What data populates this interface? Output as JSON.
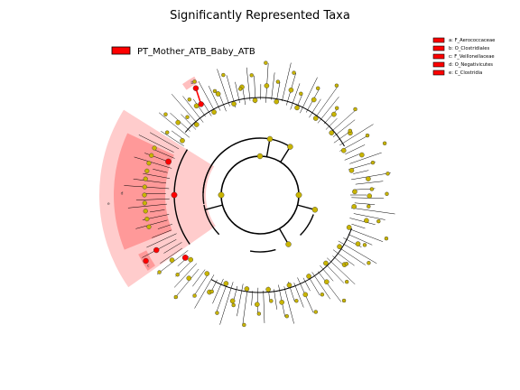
{
  "chart_data": {
    "type": "cladogram",
    "title": "Significantly Represented Taxa",
    "legend": {
      "class_label": "PT_Mother_ATB_Baby_ATB",
      "class_color": "#ff0000",
      "placement": "top-left",
      "taxa_placement": "top-right"
    },
    "taxa_legend": [
      {
        "key": "a",
        "text": "a: F_Aerococcaceae"
      },
      {
        "key": "b",
        "text": "b: O_Clostridiales"
      },
      {
        "key": "c",
        "text": "c: F_Veillonellaceae"
      },
      {
        "key": "d",
        "text": "d: O_Negativicutes"
      },
      {
        "key": "e",
        "text": "e: C_Clostridia"
      }
    ],
    "highlight_labels": [
      "a",
      "b",
      "c",
      "d",
      "e"
    ],
    "colors": {
      "node_default": "#c8b400",
      "node_significant": "#ff0000",
      "highlight_fill": "#ff0000",
      "line": "#000000"
    }
  }
}
